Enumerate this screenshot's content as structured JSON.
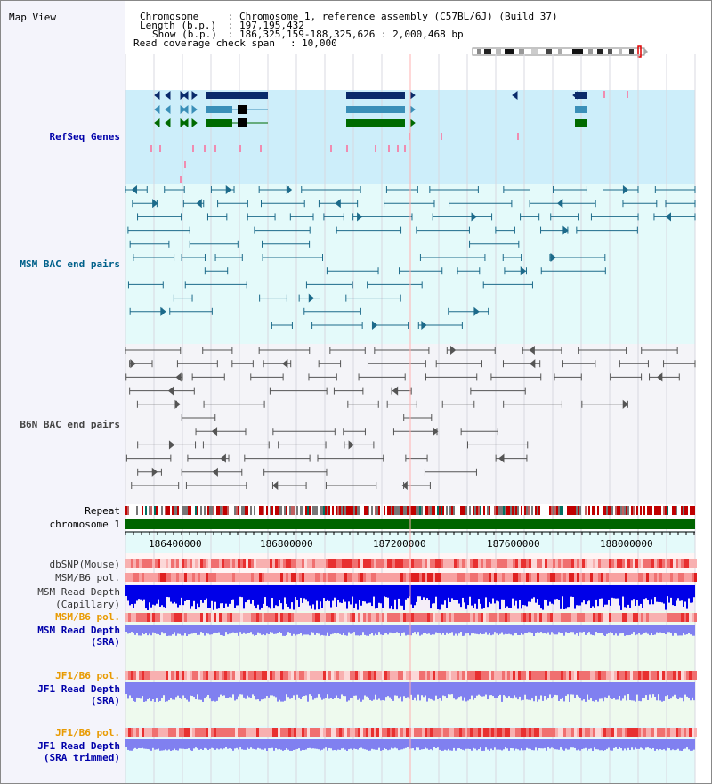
{
  "title": "Map View",
  "info": {
    "chromosome_key": "Chromosome",
    "chromosome_val": "Chromosome 1, reference assembly (C57BL/6J) (Build 37)",
    "length_key": "Length (b.p.)",
    "length_val": "197,195,432",
    "show_key": "Show (b.p.)",
    "show_val": "186,325,159-188,325,626 : 2,000,468 bp",
    "span_key": "Read coverage check span",
    "span_val": "10,000"
  },
  "tracks": {
    "refseq": "RefSeq Genes",
    "msm_bac": "MSM BAC end pairs",
    "b6n_bac": "B6N BAC end pairs",
    "repeat": "Repeat",
    "chromosome": "chromosome 1",
    "dbsnp": "dbSNP(Mouse)",
    "msm_b6_pol_1": "MSM/B6 pol.",
    "msm_depth_cap_1": "MSM Read Depth",
    "msm_depth_cap_2": "(Capillary)",
    "msm_b6_pol_2": "MSM/B6 pol.",
    "msm_depth_sra_1": "MSM Read Depth",
    "msm_depth_sra_2": "(SRA)",
    "jf1_b6_pol_1": "JF1/B6 pol.",
    "jf1_depth_sra_1": "JF1 Read Depth",
    "jf1_depth_sra_2": "(SRA)",
    "jf1_b6_pol_2": "JF1/B6 pol.",
    "jf1_depth_trim_1": "JF1 Read Depth",
    "jf1_depth_trim_2": "(SRA trimmed)"
  },
  "axis": {
    "ticks": [
      "186400000",
      "186800000",
      "187200000",
      "187600000",
      "188000000"
    ]
  },
  "colors": {
    "label_blue": "#0000aa",
    "label_teal": "#00608a",
    "label_dark": "#333333",
    "label_orange": "#e89a00",
    "refseq_bg": "#cdeefa",
    "msm_bg": "#e4fafa",
    "b6n_bg": "#f2f2f8",
    "chrom_green": "#006400",
    "depth_blue": "#0000e8",
    "sra_blue": "#8080f0"
  },
  "icons": {
    "ideogram": "chromosome-ideogram"
  }
}
